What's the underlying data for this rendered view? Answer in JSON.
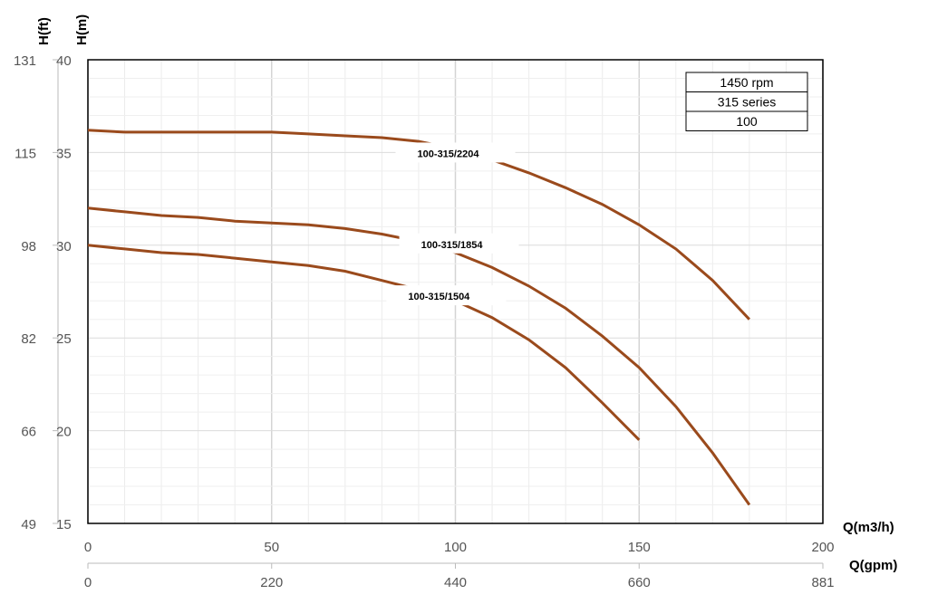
{
  "chart_data": {
    "type": "line",
    "xlabel": "Q(m3/h)",
    "xlabel2": "Q(gpm)",
    "ylabel": "H(m)",
    "ylabel2": "H(ft)",
    "xlim": [
      0,
      200
    ],
    "ylim": [
      15,
      40
    ],
    "x_ticks": [
      "0",
      "50",
      "100",
      "150",
      "200"
    ],
    "x2_ticks": [
      "0",
      "220",
      "440",
      "660",
      "881"
    ],
    "y_ticks": [
      "15",
      "20",
      "25",
      "30",
      "35",
      "40"
    ],
    "y2_ticks": [
      "49",
      "66",
      "82",
      "98",
      "115",
      "131"
    ],
    "grid": true,
    "legend": [
      "1450 rpm",
      "315 series",
      "100"
    ],
    "line_color": "#9a4a1c",
    "series": [
      {
        "name": "100-315/2204",
        "x": [
          0,
          10,
          20,
          30,
          40,
          50,
          60,
          70,
          80,
          90,
          100,
          110,
          120,
          130,
          140,
          150,
          160,
          170,
          180
        ],
        "y": [
          36.2,
          36.1,
          36.1,
          36.1,
          36.1,
          36.1,
          36.0,
          35.9,
          35.8,
          35.6,
          35.2,
          34.6,
          33.9,
          33.1,
          32.2,
          31.1,
          29.8,
          28.1,
          26.0
        ]
      },
      {
        "name": "100-315/1854",
        "x": [
          0,
          10,
          20,
          30,
          40,
          50,
          60,
          70,
          80,
          90,
          100,
          110,
          120,
          130,
          140,
          150,
          160,
          170,
          180
        ],
        "y": [
          32.0,
          31.8,
          31.6,
          31.5,
          31.3,
          31.2,
          31.1,
          30.9,
          30.6,
          30.2,
          29.6,
          28.8,
          27.8,
          26.6,
          25.1,
          23.4,
          21.3,
          18.8,
          16.0
        ]
      },
      {
        "name": "100-315/1504",
        "x": [
          0,
          10,
          20,
          30,
          40,
          50,
          60,
          70,
          80,
          90,
          100,
          110,
          120,
          130,
          140,
          150
        ],
        "y": [
          30.0,
          29.8,
          29.6,
          29.5,
          29.3,
          29.1,
          28.9,
          28.6,
          28.1,
          27.6,
          27.0,
          26.1,
          24.9,
          23.4,
          21.5,
          19.5
        ]
      }
    ]
  }
}
